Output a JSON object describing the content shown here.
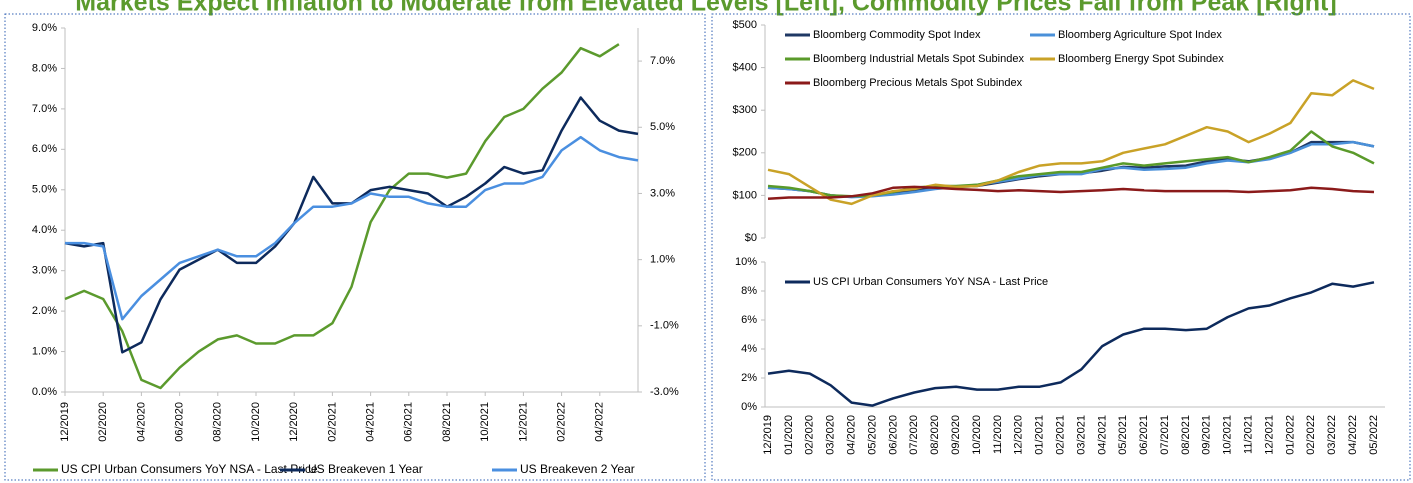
{
  "title": "Markets Expect Inflation to Moderate from Elevated Levels [Left], Commodity Prices Fall from Peak [Right]",
  "chart_data": [
    {
      "type": "line",
      "x": [
        "2019-12",
        "2020-01",
        "2020-02",
        "2020-03",
        "2020-04",
        "2020-05",
        "2020-06",
        "2020-07",
        "2020-08",
        "2020-09",
        "2020-10",
        "2020-11",
        "2020-12",
        "2021-01",
        "2021-02",
        "2021-03",
        "2021-04",
        "2021-05",
        "2021-06",
        "2021-07",
        "2021-08",
        "2021-09",
        "2021-10",
        "2021-11",
        "2021-12",
        "2022-01",
        "2022-02",
        "2022-03",
        "2022-04",
        "2022-05",
        "2022-06"
      ],
      "xlim": [
        "2019-12",
        "2022-06"
      ],
      "xticks": [
        {
          "value": "2019-12",
          "label": "12/2019"
        },
        {
          "value": "2020-02",
          "label": "02/2020"
        },
        {
          "value": "2020-04",
          "label": "04/2020"
        },
        {
          "value": "2020-06",
          "label": "06/2020"
        },
        {
          "value": "2020-08",
          "label": "08/2020"
        },
        {
          "value": "2020-10",
          "label": "10/2020"
        },
        {
          "value": "2020-12",
          "label": "12/2020"
        },
        {
          "value": "2021-02",
          "label": "02/2021"
        },
        {
          "value": "2021-04",
          "label": "04/2021"
        },
        {
          "value": "2021-06",
          "label": "06/2021"
        },
        {
          "value": "2021-08",
          "label": "08/2021"
        },
        {
          "value": "2021-10",
          "label": "10/2021"
        },
        {
          "value": "2021-12",
          "label": "12/2021"
        },
        {
          "value": "2022-02",
          "label": "02/2022"
        },
        {
          "value": "2022-04",
          "label": "04/2022"
        }
      ],
      "ylim": [
        0,
        9
      ],
      "yticks": [
        {
          "value": 0,
          "label": "0.0%"
        },
        {
          "value": 1,
          "label": "1.0%"
        },
        {
          "value": 2,
          "label": "2.0%"
        },
        {
          "value": 3,
          "label": "3.0%"
        },
        {
          "value": 4,
          "label": "4.0%"
        },
        {
          "value": 5,
          "label": "5.0%"
        },
        {
          "value": 6,
          "label": "6.0%"
        },
        {
          "value": 7,
          "label": "7.0%"
        },
        {
          "value": 8,
          "label": "8.0%"
        },
        {
          "value": 9,
          "label": "9.0%"
        }
      ],
      "y2lim": [
        -3,
        8
      ],
      "y2ticks": [
        {
          "value": -3,
          "label": "-3.0%"
        },
        {
          "value": -1,
          "label": "-1.0%"
        },
        {
          "value": 1,
          "label": "1.0%"
        },
        {
          "value": 3,
          "label": "3.0%"
        },
        {
          "value": 5,
          "label": "5.0%"
        },
        {
          "value": 7,
          "label": "7.0%"
        }
      ],
      "legend": "bottom",
      "series": [
        {
          "name": "US CPI Urban Consumers YoY NSA - Last Price",
          "color": "#5b9a2d",
          "axis": "y",
          "values": [
            2.3,
            2.5,
            2.3,
            1.5,
            0.3,
            0.1,
            0.6,
            1.0,
            1.3,
            1.4,
            1.2,
            1.2,
            1.4,
            1.4,
            1.7,
            2.6,
            4.2,
            5.0,
            5.4,
            5.4,
            5.3,
            5.4,
            6.2,
            6.8,
            7.0,
            7.5,
            7.9,
            8.5,
            8.3,
            8.6,
            null
          ]
        },
        {
          "name": "US Breakeven 1 Year",
          "color": "#0d2a5c",
          "axis": "y2",
          "values": [
            1.5,
            1.4,
            1.5,
            -1.8,
            -1.5,
            -0.2,
            0.7,
            1.0,
            1.3,
            0.9,
            0.9,
            1.4,
            2.1,
            3.5,
            2.7,
            2.7,
            3.1,
            3.2,
            3.1,
            3.0,
            2.6,
            2.9,
            3.3,
            3.8,
            3.6,
            3.7,
            4.9,
            5.9,
            5.2,
            4.9,
            4.8
          ]
        },
        {
          "name": "US Breakeven 2 Year",
          "color": "#4a8fe0",
          "axis": "y2",
          "values": [
            1.5,
            1.5,
            1.4,
            -0.8,
            -0.1,
            0.4,
            0.9,
            1.1,
            1.3,
            1.1,
            1.1,
            1.5,
            2.1,
            2.6,
            2.6,
            2.7,
            3.0,
            2.9,
            2.9,
            2.7,
            2.6,
            2.6,
            3.1,
            3.3,
            3.3,
            3.5,
            4.3,
            4.7,
            4.3,
            4.1,
            4.0
          ]
        }
      ]
    },
    {
      "type": "line",
      "ylim": [
        0,
        500
      ],
      "yticks": [
        {
          "value": 0,
          "label": "$0"
        },
        {
          "value": 100,
          "label": "$100"
        },
        {
          "value": 200,
          "label": "$200"
        },
        {
          "value": 300,
          "label": "$300"
        },
        {
          "value": 400,
          "label": "$400"
        },
        {
          "value": 500,
          "label": "$500"
        }
      ],
      "legend": "top-left",
      "series": [
        {
          "name": "Bloomberg Commodity Spot Index",
          "color": "#1f3864",
          "values": [
            118,
            115,
            110,
            100,
            97,
            100,
            105,
            112,
            117,
            120,
            122,
            130,
            138,
            145,
            150,
            152,
            158,
            167,
            165,
            168,
            170,
            180,
            185,
            180,
            188,
            200,
            225,
            225,
            225,
            215
          ]
        },
        {
          "name": "Bloomberg Agriculture Spot Index",
          "color": "#4a90d9",
          "values": [
            118,
            115,
            110,
            100,
            96,
            98,
            102,
            108,
            115,
            120,
            125,
            132,
            140,
            148,
            150,
            150,
            162,
            165,
            160,
            162,
            165,
            175,
            182,
            178,
            185,
            200,
            220,
            220,
            225,
            215
          ]
        },
        {
          "name": "Bloomberg Industrial Metals Spot Subindex",
          "color": "#5a9a2a",
          "values": [
            122,
            118,
            110,
            100,
            98,
            100,
            108,
            118,
            122,
            122,
            125,
            135,
            145,
            150,
            155,
            155,
            165,
            175,
            170,
            175,
            180,
            185,
            190,
            178,
            190,
            205,
            250,
            215,
            200,
            175
          ]
        },
        {
          "name": "Bloomberg Energy Spot Subindex",
          "color": "#c9a227",
          "values": [
            160,
            150,
            120,
            90,
            80,
            100,
            110,
            115,
            125,
            120,
            122,
            135,
            155,
            170,
            175,
            175,
            180,
            200,
            210,
            220,
            240,
            260,
            250,
            225,
            245,
            270,
            340,
            335,
            370,
            350
          ]
        },
        {
          "name": "Bloomberg Precious Metals Spot Subindex",
          "color": "#8b1a1a",
          "values": [
            92,
            95,
            95,
            95,
            98,
            105,
            118,
            120,
            118,
            115,
            113,
            110,
            112,
            110,
            108,
            110,
            112,
            115,
            112,
            110,
            110,
            110,
            110,
            108,
            110,
            112,
            118,
            115,
            110,
            108
          ]
        }
      ]
    },
    {
      "type": "line",
      "categories": [
        "12/2019",
        "01/2020",
        "02/2020",
        "03/2020",
        "04/2020",
        "05/2020",
        "06/2020",
        "07/2020",
        "08/2020",
        "09/2020",
        "10/2020",
        "11/2020",
        "12/2020",
        "01/2021",
        "02/2021",
        "03/2021",
        "04/2021",
        "05/2021",
        "06/2021",
        "07/2021",
        "08/2021",
        "09/2021",
        "10/2021",
        "11/2021",
        "12/2021",
        "01/2022",
        "02/2022",
        "03/2022",
        "04/2022",
        "05/2022"
      ],
      "ylim": [
        0,
        10
      ],
      "yticks": [
        {
          "value": 0,
          "label": "0%"
        },
        {
          "value": 2,
          "label": "2%"
        },
        {
          "value": 4,
          "label": "4%"
        },
        {
          "value": 6,
          "label": "6%"
        },
        {
          "value": 8,
          "label": "8%"
        },
        {
          "value": 10,
          "label": "10%"
        }
      ],
      "legend": "top-left",
      "series": [
        {
          "name": "US CPI Urban Consumers YoY NSA - Last Price",
          "color": "#0d2a5c",
          "values": [
            2.3,
            2.5,
            2.3,
            1.5,
            0.3,
            0.1,
            0.6,
            1.0,
            1.3,
            1.4,
            1.2,
            1.2,
            1.4,
            1.4,
            1.7,
            2.6,
            4.2,
            5.0,
            5.4,
            5.4,
            5.3,
            5.4,
            6.2,
            6.8,
            7.0,
            7.5,
            7.9,
            8.5,
            8.3,
            8.6
          ]
        }
      ]
    }
  ]
}
